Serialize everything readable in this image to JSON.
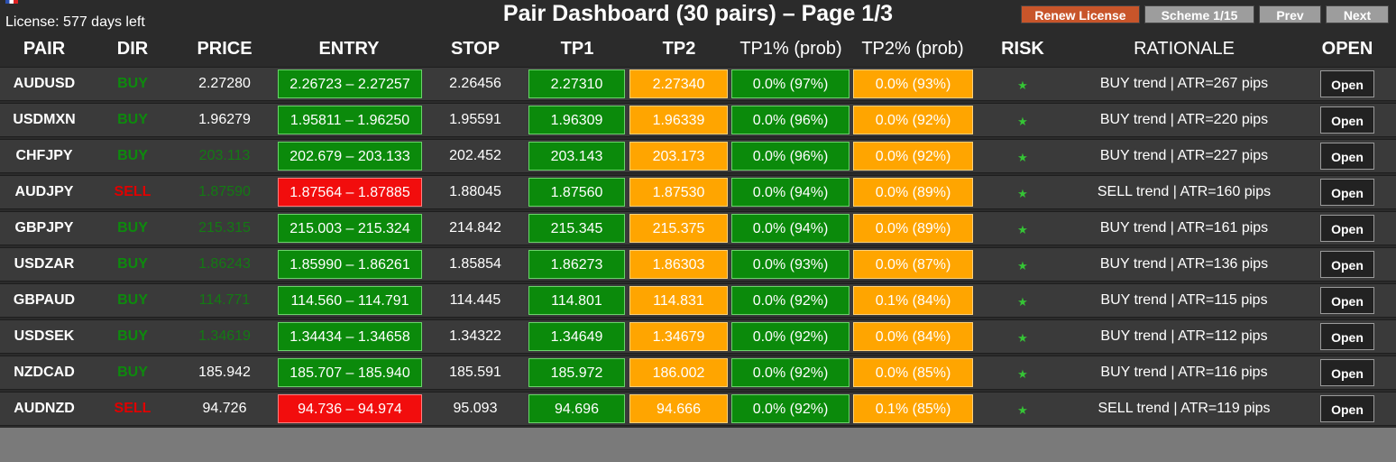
{
  "app": {
    "title": "Pair Dashboard (30 pairs) – Page 1/3",
    "license": "License: 577 days left"
  },
  "toolbar": {
    "renew_label": "Renew License",
    "scheme_label": "Scheme 1/15",
    "prev_label": "Prev",
    "next_label": "Next"
  },
  "colors": {
    "buy": "#0d8a0d",
    "sell": "#e00000",
    "tp1_box": "#0b8a0b",
    "tp2_box": "#ffa500",
    "renew": "#c8552a",
    "muted_price": "#137a13"
  },
  "columns": [
    "PAIR",
    "DIR",
    "PRICE",
    "ENTRY",
    "STOP",
    "TP1",
    "TP2",
    "TP1% (prob)",
    "TP2% (prob)",
    "RISK",
    "RATIONALE",
    "OPEN"
  ],
  "rows": [
    {
      "pair": "AUDUSD",
      "dir": "BUY",
      "price": "2.27280",
      "price_muted": false,
      "entry": "2.26723 – 2.27257",
      "stop": "2.26456",
      "tp1": "2.27310",
      "tp2": "2.27340",
      "tp1p": "0.0% (97%)",
      "tp2p": "0.0% (93%)",
      "risk": "★",
      "rationale": "BUY trend | ATR=267 pips",
      "open": "Open"
    },
    {
      "pair": "USDMXN",
      "dir": "BUY",
      "price": "1.96279",
      "price_muted": false,
      "entry": "1.95811 – 1.96250",
      "stop": "1.95591",
      "tp1": "1.96309",
      "tp2": "1.96339",
      "tp1p": "0.0% (96%)",
      "tp2p": "0.0% (92%)",
      "risk": "★",
      "rationale": "BUY trend | ATR=220 pips",
      "open": "Open"
    },
    {
      "pair": "CHFJPY",
      "dir": "BUY",
      "price": "203.113",
      "price_muted": true,
      "entry": "202.679 – 203.133",
      "stop": "202.452",
      "tp1": "203.143",
      "tp2": "203.173",
      "tp1p": "0.0% (96%)",
      "tp2p": "0.0% (92%)",
      "risk": "★",
      "rationale": "BUY trend | ATR=227 pips",
      "open": "Open"
    },
    {
      "pair": "AUDJPY",
      "dir": "SELL",
      "price": "1.87590",
      "price_muted": true,
      "entry": "1.87564 – 1.87885",
      "stop": "1.88045",
      "tp1": "1.87560",
      "tp2": "1.87530",
      "tp1p": "0.0% (94%)",
      "tp2p": "0.0% (89%)",
      "risk": "★",
      "rationale": "SELL trend | ATR=160 pips",
      "open": "Open"
    },
    {
      "pair": "GBPJPY",
      "dir": "BUY",
      "price": "215.315",
      "price_muted": true,
      "entry": "215.003 – 215.324",
      "stop": "214.842",
      "tp1": "215.345",
      "tp2": "215.375",
      "tp1p": "0.0% (94%)",
      "tp2p": "0.0% (89%)",
      "risk": "★",
      "rationale": "BUY trend | ATR=161 pips",
      "open": "Open"
    },
    {
      "pair": "USDZAR",
      "dir": "BUY",
      "price": "1.86243",
      "price_muted": true,
      "entry": "1.85990 – 1.86261",
      "stop": "1.85854",
      "tp1": "1.86273",
      "tp2": "1.86303",
      "tp1p": "0.0% (93%)",
      "tp2p": "0.0% (87%)",
      "risk": "★",
      "rationale": "BUY trend | ATR=136 pips",
      "open": "Open"
    },
    {
      "pair": "GBPAUD",
      "dir": "BUY",
      "price": "114.771",
      "price_muted": true,
      "entry": "114.560 – 114.791",
      "stop": "114.445",
      "tp1": "114.801",
      "tp2": "114.831",
      "tp1p": "0.0% (92%)",
      "tp2p": "0.1% (84%)",
      "risk": "★",
      "rationale": "BUY trend | ATR=115 pips",
      "open": "Open"
    },
    {
      "pair": "USDSEK",
      "dir": "BUY",
      "price": "1.34619",
      "price_muted": true,
      "entry": "1.34434 – 1.34658",
      "stop": "1.34322",
      "tp1": "1.34649",
      "tp2": "1.34679",
      "tp1p": "0.0% (92%)",
      "tp2p": "0.0% (84%)",
      "risk": "★",
      "rationale": "BUY trend | ATR=112 pips",
      "open": "Open"
    },
    {
      "pair": "NZDCAD",
      "dir": "BUY",
      "price": "185.942",
      "price_muted": false,
      "entry": "185.707 – 185.940",
      "stop": "185.591",
      "tp1": "185.972",
      "tp2": "186.002",
      "tp1p": "0.0% (92%)",
      "tp2p": "0.0% (85%)",
      "risk": "★",
      "rationale": "BUY trend | ATR=116 pips",
      "open": "Open"
    },
    {
      "pair": "AUDNZD",
      "dir": "SELL",
      "price": "94.726",
      "price_muted": false,
      "entry": "94.736 – 94.974",
      "stop": "95.093",
      "tp1": "94.696",
      "tp2": "94.666",
      "tp1p": "0.0% (92%)",
      "tp2p": "0.1% (85%)",
      "risk": "★",
      "rationale": "SELL trend | ATR=119 pips",
      "open": "Open"
    }
  ]
}
